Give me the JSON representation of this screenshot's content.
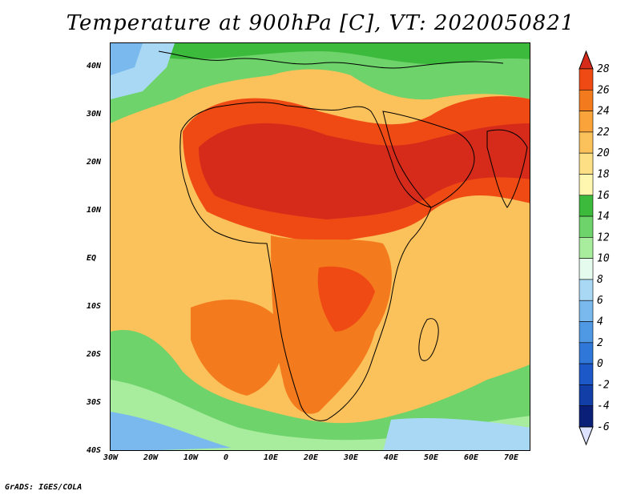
{
  "title": "Temperature at 900hPa [C], VT: 2020050821",
  "credit": "GrADS: IGES/COLA",
  "map": {
    "lon_range": [
      -30,
      75
    ],
    "lat_range": [
      -40,
      45
    ],
    "lon_ticks": [
      "30W",
      "20W",
      "10W",
      "0",
      "10E",
      "20E",
      "30E",
      "40E",
      "50E",
      "60E",
      "70E"
    ],
    "lat_ticks": [
      "40N",
      "30N",
      "20N",
      "10N",
      "EQ",
      "10S",
      "20S",
      "30S",
      "40S"
    ]
  },
  "colorbar": {
    "labels": [
      "28",
      "26",
      "24",
      "22",
      "20",
      "18",
      "16",
      "14",
      "12",
      "10",
      "8",
      "6",
      "4",
      "2",
      "0",
      "-2",
      "-4",
      "-6"
    ],
    "colors": [
      "#d62b1a",
      "#f04a14",
      "#f47a1e",
      "#f9a33a",
      "#fbc15b",
      "#fde085",
      "#fff7b0",
      "#3cba3c",
      "#6dd36a",
      "#a8ec9d",
      "#e4fbee",
      "#a9d8f5",
      "#79b9ee",
      "#4f98e4",
      "#2f77d8",
      "#1c58c8",
      "#123ea8",
      "#0a1f78",
      "#dde3ff"
    ]
  }
}
